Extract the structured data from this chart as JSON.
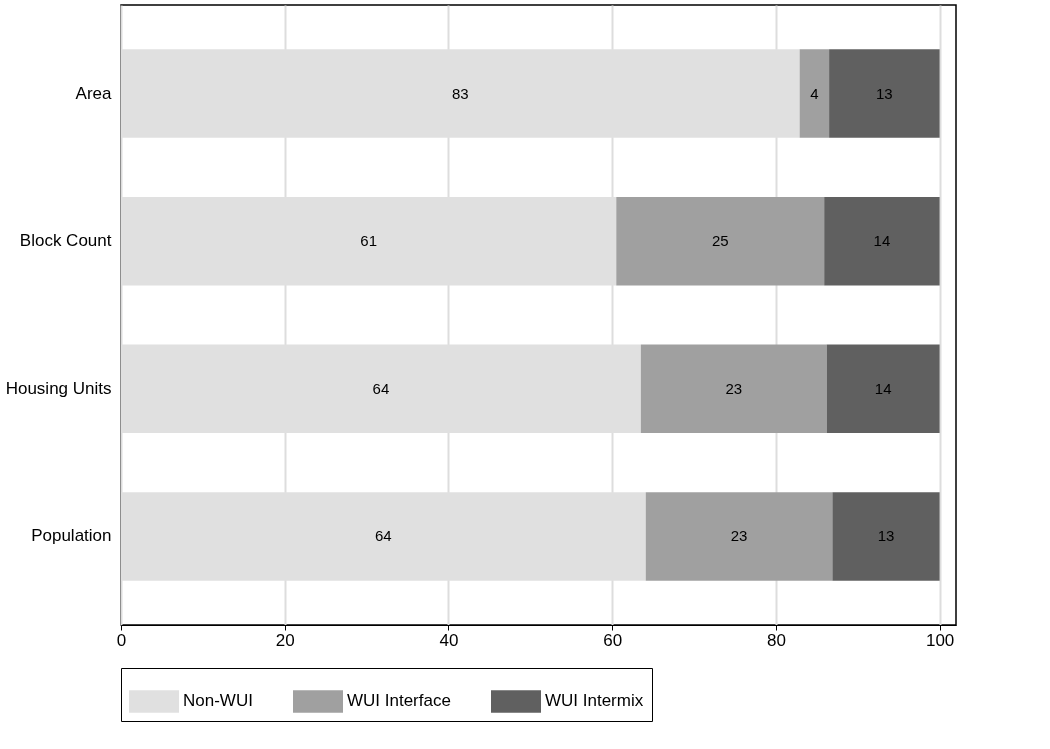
{
  "chart_data": {
    "type": "bar",
    "orientation": "horizontal",
    "stacked": true,
    "categories": [
      "Area",
      "Block Count",
      "Housing Units",
      "Population"
    ],
    "series": [
      {
        "name": "Non-WUI",
        "color": "#e0e0e0",
        "values": [
          82.9,
          60.5,
          63.5,
          64.1
        ],
        "value_labels": [
          "83",
          "61",
          "64",
          "64"
        ]
      },
      {
        "name": "WUI Interface",
        "color": "#a0a0a0",
        "values": [
          3.6,
          25.4,
          22.7,
          22.8
        ],
        "value_labels": [
          "4",
          "25",
          "23",
          "23"
        ]
      },
      {
        "name": "WUI Intermix",
        "color": "#606060",
        "values": [
          13.5,
          14.1,
          13.8,
          13.1
        ],
        "value_labels": [
          "13",
          "14",
          "14",
          "13"
        ]
      }
    ],
    "xlim": [
      0,
      102
    ],
    "xticks": [
      0,
      20,
      40,
      60,
      80,
      100
    ],
    "grid": "x",
    "legend": "bottom"
  }
}
